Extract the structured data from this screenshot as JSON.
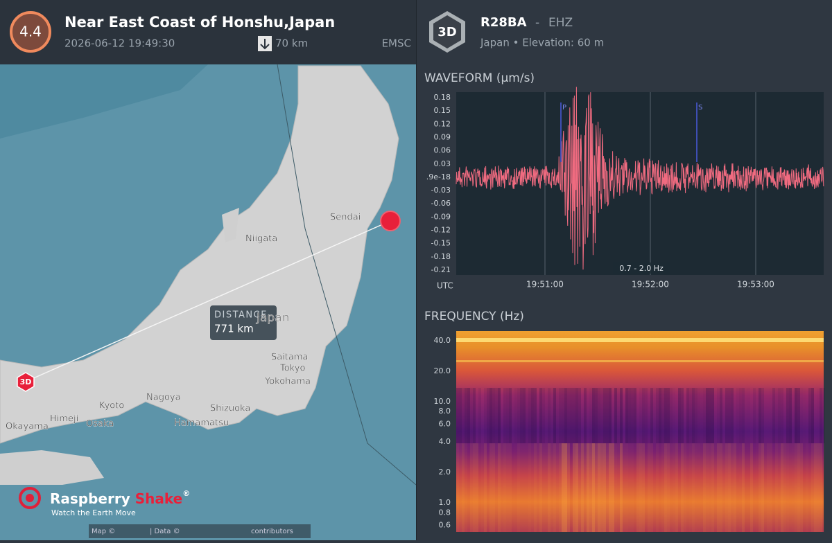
{
  "event": {
    "magnitude": "4.4",
    "title": "Near East Coast of Honshu,Japan",
    "time": "2026-06-12 19:49:30",
    "depth": "70 km",
    "source": "EMSC"
  },
  "station": {
    "badge": "3D",
    "code": "R28BA",
    "separator": "-",
    "channel": "EHZ",
    "location": "Japan • Elevation: 60 m"
  },
  "map": {
    "labels": [
      "Sendai",
      "Niigata",
      "Japan",
      "Saitama",
      "Tokyo",
      "Yokohama",
      "Kyoto",
      "Nagoya",
      "Shizuoka",
      "Himeji",
      "Osaka",
      "Okayama",
      "Hamamatsu"
    ],
    "distance_label": "DISTANCE",
    "distance": "771 km",
    "station_badge": "3D",
    "brand": "Raspberry",
    "brand_accent": "Shake",
    "brand_mark": "®",
    "tagline": "Watch the Earth Move",
    "attribution": [
      "Map ©",
      "| Data ©",
      "contributors"
    ]
  },
  "waveform": {
    "title": "WAVEFORM (µm/s)",
    "yticks": [
      "0.18",
      "0.15",
      "0.12",
      "0.09",
      "0.06",
      "0.03",
      ".9e-18",
      "-0.03",
      "-0.06",
      "-0.09",
      "-0.12",
      "-0.15",
      "-0.18",
      "-0.21"
    ],
    "xticks": [
      "19:51:00",
      "19:52:00",
      "19:53:00"
    ],
    "x_unit": "UTC",
    "phases": [
      "P",
      "S"
    ],
    "filter": "0.7 - 2.0 Hz"
  },
  "frequency": {
    "title": "FREQUENCY (Hz)",
    "yticks": [
      "40.0",
      "20.0",
      "10.0",
      "8.0",
      "6.0",
      "4.0",
      "2.0",
      "1.0",
      "0.8",
      "0.6"
    ]
  }
}
